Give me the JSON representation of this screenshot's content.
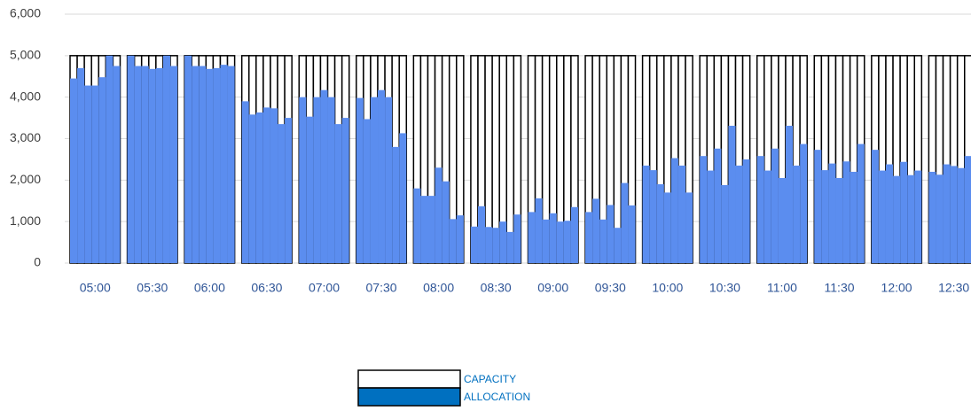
{
  "chart_data": {
    "type": "bar",
    "grid": true,
    "legend": "bottom",
    "categories": [
      null,
      null,
      null,
      "05:00",
      null,
      null,
      null,
      null,
      null,
      null,
      null,
      "05:30",
      null,
      null,
      null,
      null,
      null,
      null,
      null,
      "06:00",
      null,
      null,
      null,
      null,
      null,
      null,
      null,
      "06:30",
      null,
      null,
      null,
      null,
      null,
      null,
      null,
      "07:00",
      null,
      null,
      null,
      null,
      null,
      null,
      null,
      "07:30",
      null,
      null,
      null,
      null,
      null,
      null,
      null,
      "08:00",
      null,
      null,
      null,
      null,
      null,
      null,
      null,
      "08:30",
      null,
      null,
      null,
      null,
      null,
      null,
      null,
      "09:00",
      null,
      null,
      null,
      null,
      null,
      null,
      null,
      "09:30",
      null,
      null,
      null,
      null,
      null,
      null,
      null,
      "10:00",
      null,
      null,
      null,
      null,
      null,
      null,
      null,
      "10:30",
      null,
      null,
      null,
      null,
      null,
      null,
      null,
      "11:00",
      null,
      null,
      null,
      null,
      null,
      null,
      null,
      "11:30",
      null,
      null,
      null,
      null,
      null,
      null,
      null,
      "12:00",
      null,
      null,
      null,
      null,
      null,
      null,
      null,
      "12:30",
      null,
      null,
      null,
      null
    ],
    "series": [
      {
        "name": "CAPACITY",
        "color": "#ffffff",
        "values": [
          5000,
          5000,
          5000,
          5000,
          5000,
          5000,
          5000,
          null,
          5000,
          5000,
          5000,
          5000,
          5000,
          5000,
          5000,
          null,
          5000,
          5000,
          5000,
          5000,
          5000,
          5000,
          5000,
          null,
          5000,
          5000,
          5000,
          5000,
          5000,
          5000,
          5000,
          null,
          5000,
          5000,
          5000,
          5000,
          5000,
          5000,
          5000,
          null,
          5000,
          5000,
          5000,
          5000,
          5000,
          5000,
          5000,
          null,
          5000,
          5000,
          5000,
          5000,
          5000,
          5000,
          5000,
          null,
          5000,
          5000,
          5000,
          5000,
          5000,
          5000,
          5000,
          null,
          5000,
          5000,
          5000,
          5000,
          5000,
          5000,
          5000,
          null,
          5000,
          5000,
          5000,
          5000,
          5000,
          5000,
          5000,
          null,
          5000,
          5000,
          5000,
          5000,
          5000,
          5000,
          5000,
          null,
          5000,
          5000,
          5000,
          5000,
          5000,
          5000,
          5000,
          null,
          5000,
          5000,
          5000,
          5000,
          5000,
          5000,
          5000,
          null,
          5000,
          5000,
          5000,
          5000,
          5000,
          5000,
          5000,
          null,
          5000,
          5000,
          5000,
          5000,
          5000,
          5000,
          5000,
          null,
          5000,
          5000,
          5000,
          5000,
          5000,
          5000,
          5000,
          null
        ]
      },
      {
        "name": "ALLOCATION",
        "color": "#5b8def",
        "legend_color": "#0070c0",
        "values": [
          4450,
          4700,
          4280,
          4280,
          4480,
          5000,
          4750,
          null,
          5000,
          4750,
          4750,
          4680,
          4700,
          5000,
          4750,
          null,
          5000,
          4750,
          4750,
          4680,
          4700,
          4780,
          4750,
          null,
          3900,
          3580,
          3630,
          3750,
          3730,
          3350,
          3500,
          null,
          4000,
          3530,
          4000,
          4170,
          4000,
          3350,
          3500,
          null,
          3980,
          3470,
          4000,
          4170,
          4000,
          2800,
          3130,
          null,
          1800,
          1620,
          1620,
          2300,
          1970,
          1060,
          1150,
          null,
          880,
          1370,
          870,
          850,
          1000,
          750,
          1170,
          null,
          1230,
          1560,
          1050,
          1200,
          1000,
          1020,
          1350,
          null,
          1230,
          1550,
          1050,
          1400,
          850,
          1930,
          1390,
          null,
          2350,
          2240,
          1900,
          1700,
          2530,
          2350,
          1700,
          null,
          2580,
          2230,
          2760,
          1880,
          3310,
          2350,
          2500,
          null,
          2580,
          2230,
          2760,
          2050,
          3310,
          2350,
          2870,
          null,
          2730,
          2240,
          2400,
          2050,
          2450,
          2200,
          2870,
          null,
          2730,
          2230,
          2380,
          2100,
          2440,
          2120,
          2230,
          null,
          2200,
          2130,
          2380,
          2340,
          2290,
          2580,
          2300,
          null
        ]
      }
    ],
    "ylim": [
      0,
      6000
    ],
    "yticks": [
      0,
      {
        "value": 1000,
        "label": "1,000"
      },
      {
        "value": 2000,
        "label": "2,000"
      },
      {
        "value": 3000,
        "label": "3,000"
      },
      {
        "value": 4000,
        "label": "4,000"
      },
      {
        "value": 5000,
        "label": "5,000"
      },
      {
        "value": 6000,
        "label": "6,000"
      }
    ]
  }
}
